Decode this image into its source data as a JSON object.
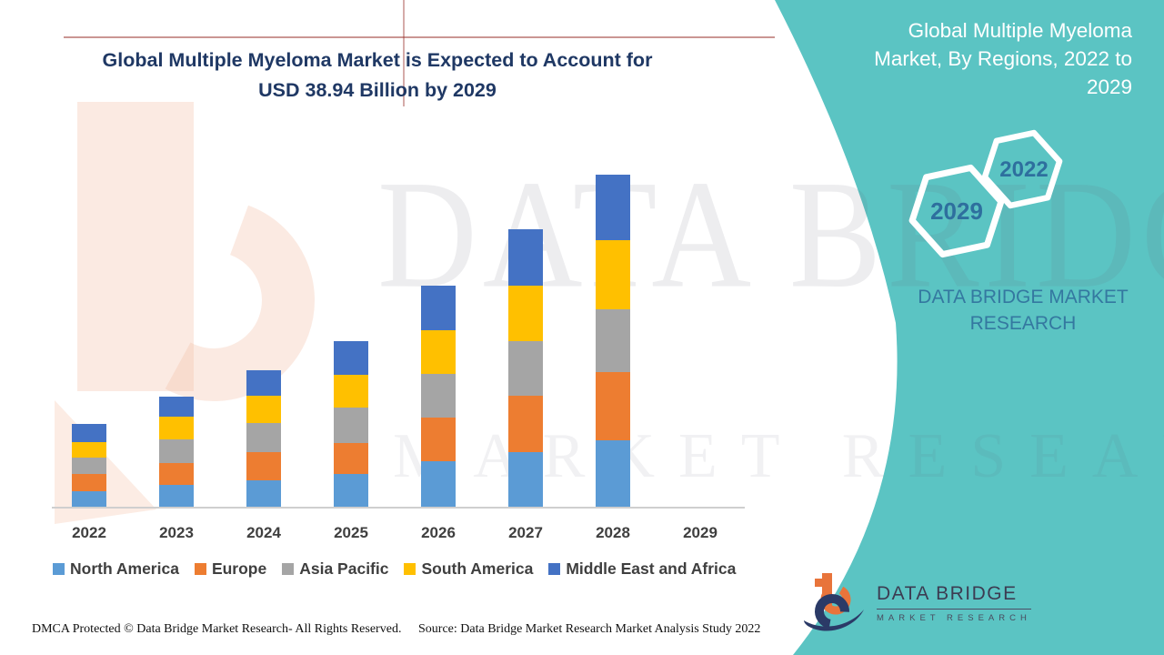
{
  "title": {
    "line1": "Global Multiple Myeloma Market is Expected to Account for",
    "line2": "USD 38.94 Billion by 2029",
    "color": "#1F3864"
  },
  "side_panel": {
    "bg_color": "#5BC4C3",
    "title_lines": [
      "Global Multiple Myeloma",
      "Market, By Regions, 2022 to",
      "2029"
    ],
    "hexagon_years": {
      "large": "2029",
      "small": "2022"
    },
    "year_text_color": "#2E6F9E",
    "brand_lines": [
      "DATA BRIDGE MARKET",
      "RESEARCH"
    ],
    "brand_color": "#3478A0"
  },
  "watermark": {
    "line1": "DATA BRIDGE",
    "line2": "MARKET RESEARCH"
  },
  "logo": {
    "line1": "DATA BRIDGE",
    "line2": "MARKET RESEARCH",
    "orange": "#E8743B",
    "navy": "#2B3A67"
  },
  "footer": {
    "dmca": "DMCA Protected © Data Bridge Market Research- All Rights Reserved.",
    "source": "Source: Data Bridge Market Research Market Analysis Study 2022"
  },
  "chart_data": {
    "type": "bar",
    "stacked": true,
    "title": "Global Multiple Myeloma Market is Expected to Account for USD 38.94 Billion by 2029",
    "categories": [
      "2022",
      "2023",
      "2024",
      "2025",
      "2026",
      "2027",
      "2028",
      "2029"
    ],
    "series": [
      {
        "name": "North America",
        "color": "#5B9BD5",
        "values": [
          18,
          25,
          30,
          37,
          51,
          61,
          74,
          0
        ]
      },
      {
        "name": "Europe",
        "color": "#ED7D31",
        "values": [
          19,
          24,
          31,
          34,
          48,
          62,
          75,
          0
        ]
      },
      {
        "name": "Asia Pacific",
        "color": "#A5A5A5",
        "values": [
          18,
          26,
          32,
          39,
          48,
          60,
          69,
          0
        ]
      },
      {
        "name": "South America",
        "color": "#FFC000",
        "values": [
          17,
          25,
          30,
          36,
          48,
          61,
          76,
          0
        ]
      },
      {
        "name": "Middle East and Africa",
        "color": "#4472C4",
        "values": [
          20,
          22,
          28,
          37,
          49,
          62,
          72,
          0
        ]
      }
    ],
    "xlabel": "",
    "ylabel": "",
    "value_axis_shown": false,
    "units": "relative stacked-segment heights in screen pixels; the figure shows no numeric value axis",
    "legend_position": "bottom",
    "notes": "No bar is drawn for the 2029 category; the 2029 value is stated in the title as USD 38.94 billion"
  }
}
